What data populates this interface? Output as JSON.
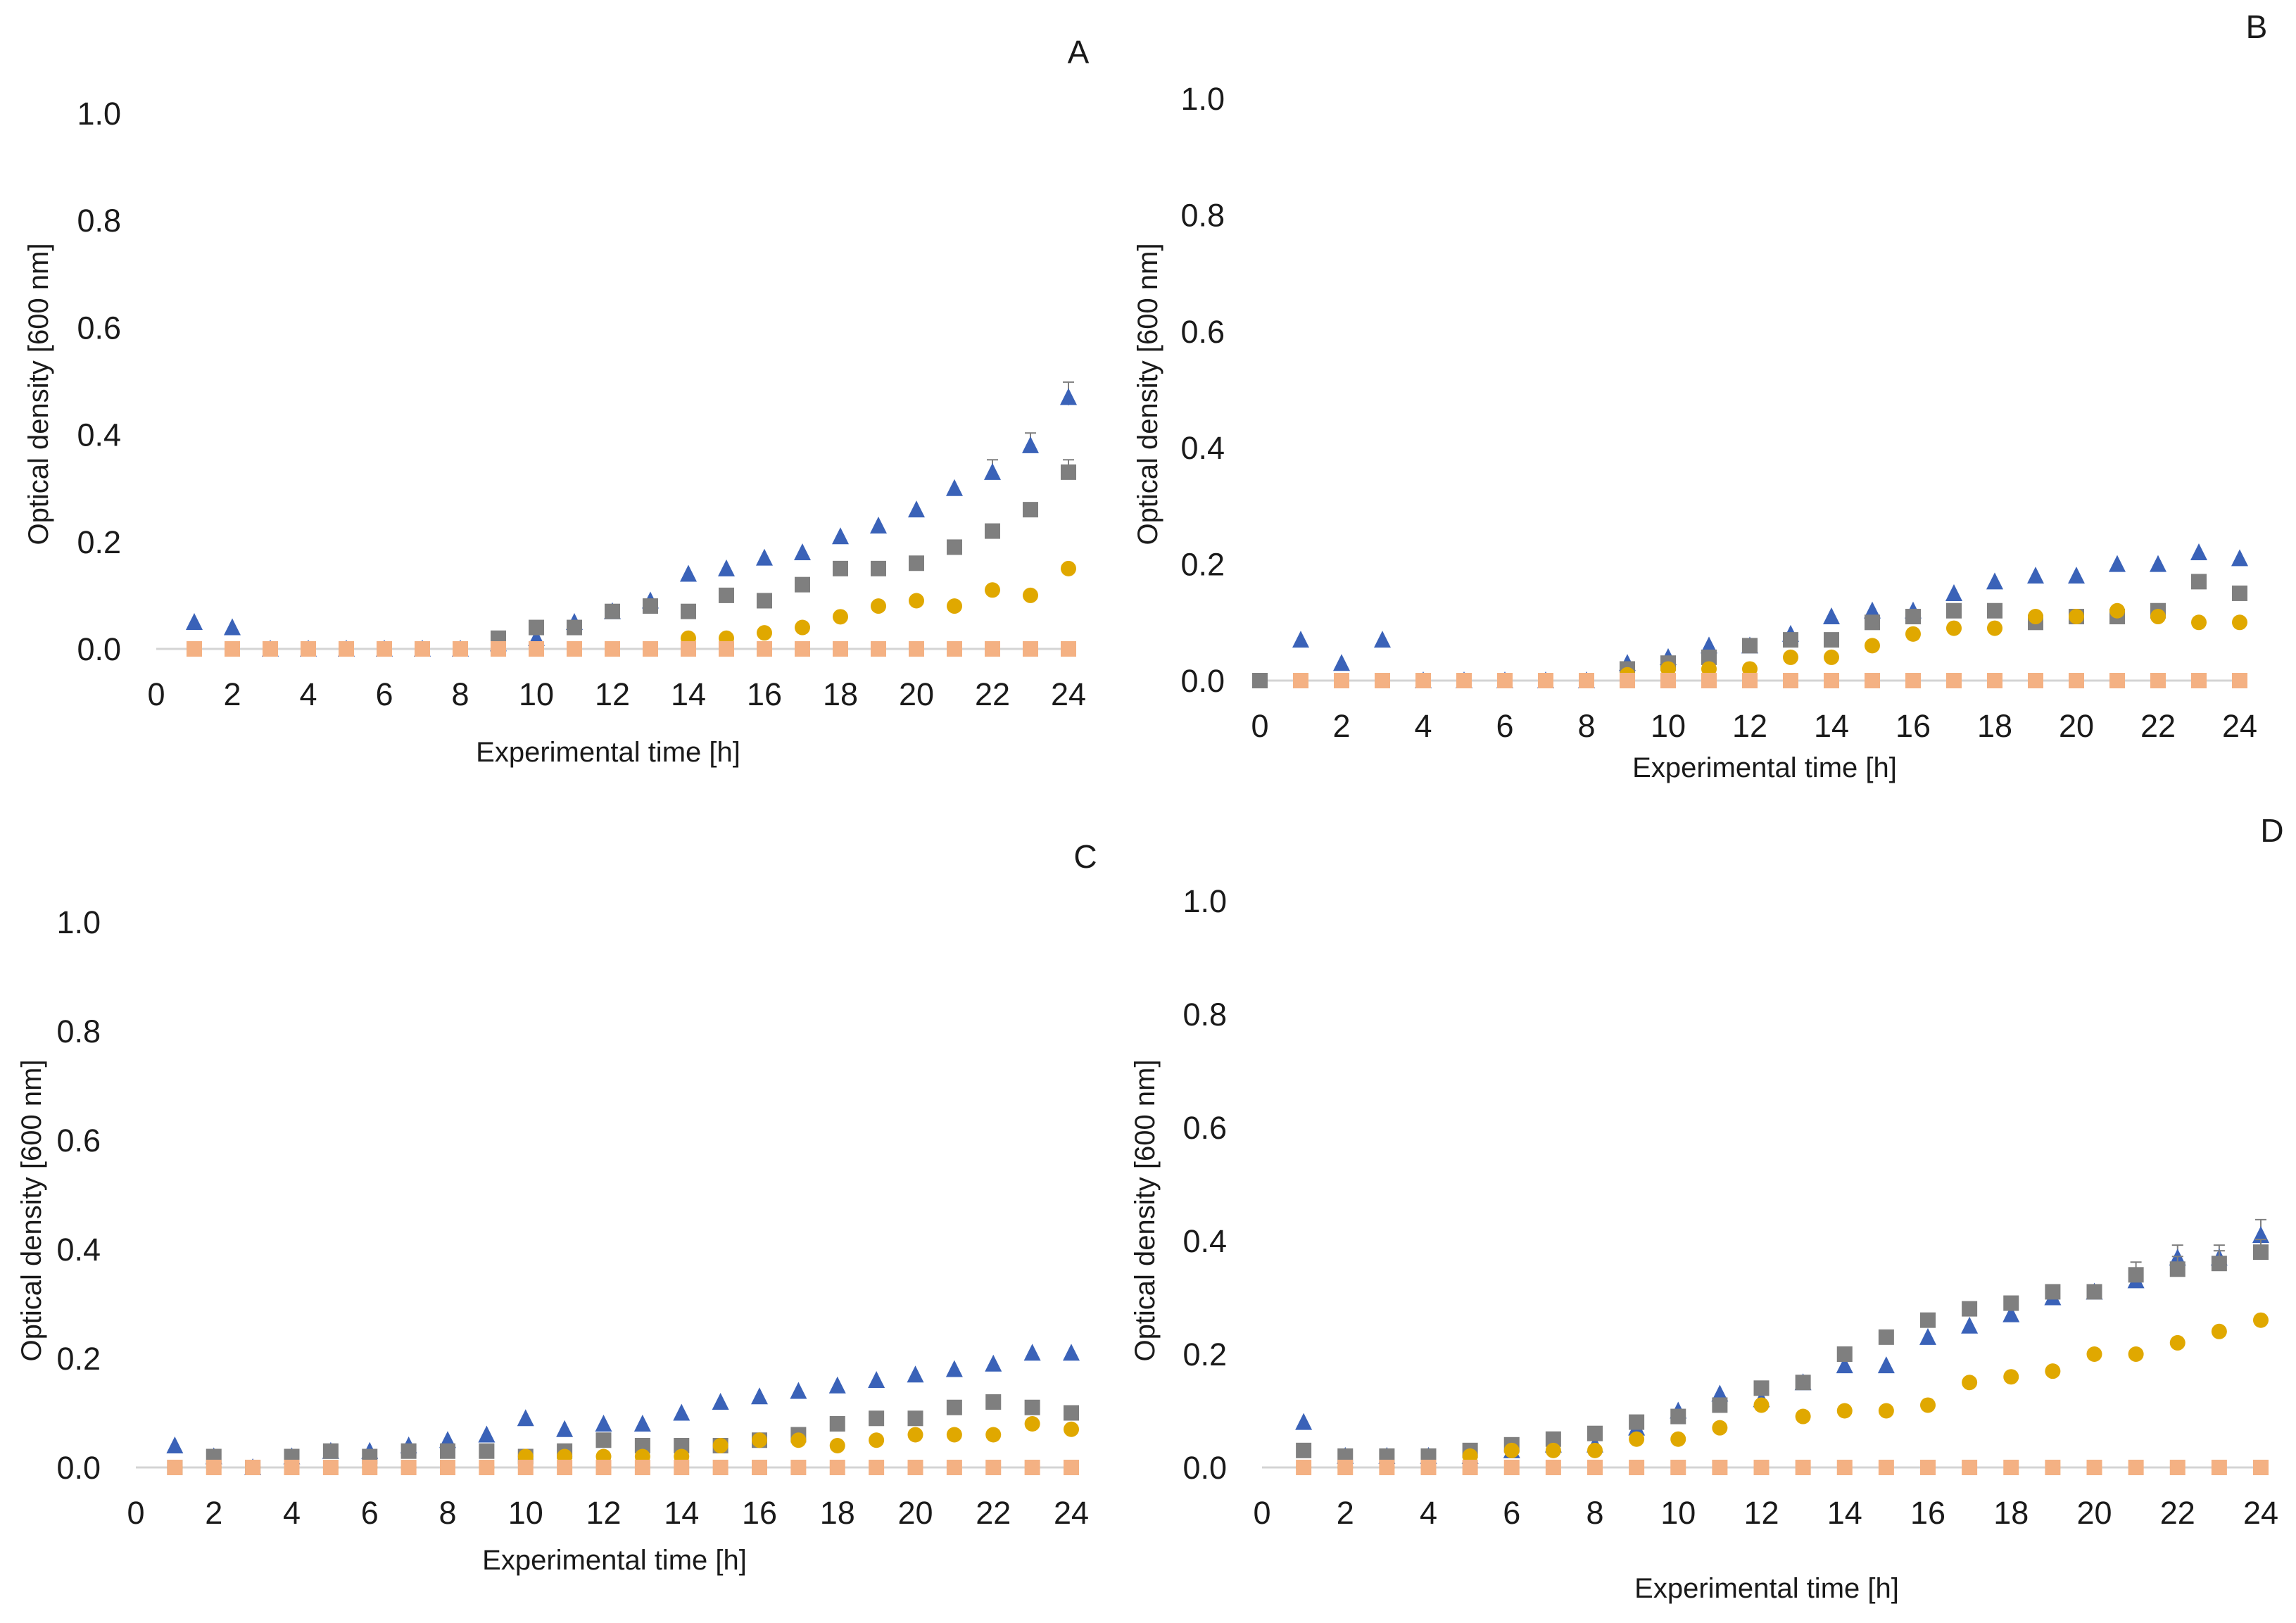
{
  "figure": {
    "background": "#ffffff"
  },
  "style": {
    "colors": {
      "blue": "#3a62b8",
      "gray": "#7f7f7f",
      "gold": "#e0a800",
      "peach": "#f4b183",
      "axis": "#d4d4d4"
    }
  },
  "chart_data": [
    {
      "type": "scatter",
      "panel": "A",
      "xlabel": "Experimental time [h]",
      "ylabel": "Optical density [600 nm]",
      "xlim": [
        0,
        24
      ],
      "ylim": [
        0,
        1.0
      ],
      "xticks": [
        "0",
        "2",
        "4",
        "6",
        "8",
        "10",
        "12",
        "14",
        "16",
        "18",
        "20",
        "22",
        "24"
      ],
      "yticks": [
        "0.0",
        "0.2",
        "0.4",
        "0.6",
        "0.8",
        "1.0"
      ],
      "series": [
        {
          "name": "series-triangle-blue",
          "marker": "triangle",
          "color": "#3a62b8",
          "x": [
            1,
            2,
            3,
            4,
            5,
            6,
            7,
            8,
            9,
            10,
            11,
            12,
            13,
            14,
            15,
            16,
            17,
            18,
            19,
            20,
            21,
            22,
            23,
            24
          ],
          "y": [
            0.05,
            0.04,
            0,
            0,
            0,
            0,
            0,
            0,
            0.01,
            0.02,
            0.05,
            0.07,
            0.09,
            0.14,
            0.15,
            0.17,
            0.18,
            0.21,
            0.23,
            0.26,
            0.3,
            0.33,
            0.38,
            0.47
          ],
          "err": [
            0,
            0,
            0,
            0,
            0,
            0,
            0,
            0,
            0,
            0,
            0,
            0,
            0,
            0,
            0,
            0,
            0,
            0,
            0,
            0,
            0,
            0.01,
            0.01,
            0.015
          ]
        },
        {
          "name": "series-square-gray",
          "marker": "square",
          "color": "#7f7f7f",
          "x": [
            1,
            2,
            3,
            4,
            5,
            6,
            7,
            8,
            9,
            10,
            11,
            12,
            13,
            14,
            15,
            16,
            17,
            18,
            19,
            20,
            21,
            22,
            23,
            24
          ],
          "y": [
            0,
            0,
            0,
            0,
            0,
            0,
            0,
            0,
            0.02,
            0.04,
            0.04,
            0.07,
            0.08,
            0.07,
            0.1,
            0.09,
            0.12,
            0.15,
            0.15,
            0.16,
            0.19,
            0.22,
            0.26,
            0.33
          ],
          "err": [
            0,
            0,
            0,
            0,
            0,
            0,
            0,
            0,
            0,
            0,
            0,
            0,
            0,
            0,
            0,
            0,
            0,
            0,
            0,
            0,
            0,
            0,
            0,
            0.01
          ]
        },
        {
          "name": "series-circle-gold",
          "marker": "circle",
          "color": "#e0a800",
          "x": [
            1,
            2,
            3,
            4,
            5,
            6,
            7,
            8,
            9,
            10,
            11,
            12,
            13,
            14,
            15,
            16,
            17,
            18,
            19,
            20,
            21,
            22,
            23,
            24
          ],
          "y": [
            0,
            0,
            0,
            0,
            0,
            0,
            0,
            0,
            0,
            0,
            0,
            0,
            0,
            0.02,
            0.02,
            0.03,
            0.04,
            0.06,
            0.08,
            0.09,
            0.08,
            0.11,
            0.1,
            0.15
          ]
        },
        {
          "name": "series-square-peach",
          "marker": "square",
          "color": "#f4b183",
          "x": [
            1,
            2,
            3,
            4,
            5,
            6,
            7,
            8,
            9,
            10,
            11,
            12,
            13,
            14,
            15,
            16,
            17,
            18,
            19,
            20,
            21,
            22,
            23,
            24
          ],
          "y": [
            0,
            0,
            0,
            0,
            0,
            0,
            0,
            0,
            0,
            0,
            0,
            0,
            0,
            0,
            0,
            0,
            0,
            0,
            0,
            0,
            0,
            0,
            0,
            0
          ]
        }
      ]
    },
    {
      "type": "scatter",
      "panel": "B",
      "xlabel": "Experimental time [h]",
      "ylabel": "Optical density [600 nm]",
      "xlim": [
        0,
        24
      ],
      "ylim": [
        0,
        1.0
      ],
      "xticks": [
        "0",
        "2",
        "4",
        "6",
        "8",
        "10",
        "12",
        "14",
        "16",
        "18",
        "20",
        "22",
        "24"
      ],
      "yticks": [
        "0.0",
        "0.2",
        "0.4",
        "0.6",
        "0.8",
        "1.0"
      ],
      "series": [
        {
          "name": "series-triangle-blue",
          "marker": "triangle",
          "color": "#3a62b8",
          "x": [
            1,
            2,
            3,
            4,
            5,
            6,
            7,
            8,
            9,
            10,
            11,
            12,
            13,
            14,
            15,
            16,
            17,
            18,
            19,
            20,
            21,
            22,
            23,
            24
          ],
          "y": [
            0.07,
            0.03,
            0.07,
            0,
            0,
            0,
            0,
            0,
            0.03,
            0.04,
            0.06,
            0.06,
            0.08,
            0.11,
            0.12,
            0.12,
            0.15,
            0.17,
            0.18,
            0.18,
            0.2,
            0.2,
            0.22,
            0.21
          ]
        },
        {
          "name": "series-square-gray",
          "marker": "square",
          "color": "#7f7f7f",
          "x": [
            0,
            1,
            2,
            3,
            4,
            5,
            6,
            7,
            8,
            9,
            10,
            11,
            12,
            13,
            14,
            15,
            16,
            17,
            18,
            19,
            20,
            21,
            22,
            23,
            24
          ],
          "y": [
            0,
            0,
            0,
            0,
            0,
            0,
            0,
            0,
            0,
            0.02,
            0.03,
            0.04,
            0.06,
            0.07,
            0.07,
            0.1,
            0.11,
            0.12,
            0.12,
            0.1,
            0.11,
            0.11,
            0.12,
            0.17,
            0.15
          ]
        },
        {
          "name": "series-circle-gold",
          "marker": "circle",
          "color": "#e0a800",
          "x": [
            1,
            2,
            3,
            4,
            5,
            6,
            7,
            8,
            9,
            10,
            11,
            12,
            13,
            14,
            15,
            16,
            17,
            18,
            19,
            20,
            21,
            22,
            23,
            24
          ],
          "y": [
            0,
            0,
            0,
            0,
            0,
            0,
            0,
            0,
            0.01,
            0.02,
            0.02,
            0.02,
            0.04,
            0.04,
            0.06,
            0.08,
            0.09,
            0.09,
            0.11,
            0.11,
            0.12,
            0.11,
            0.1,
            0.1
          ]
        },
        {
          "name": "series-square-peach",
          "marker": "square",
          "color": "#f4b183",
          "x": [
            1,
            2,
            3,
            4,
            5,
            6,
            7,
            8,
            9,
            10,
            11,
            12,
            13,
            14,
            15,
            16,
            17,
            18,
            19,
            20,
            21,
            22,
            23,
            24
          ],
          "y": [
            0,
            0,
            0,
            0,
            0,
            0,
            0,
            0,
            0,
            0,
            0,
            0,
            0,
            0,
            0,
            0,
            0,
            0,
            0,
            0,
            0,
            0,
            0,
            0
          ]
        }
      ]
    },
    {
      "type": "scatter",
      "panel": "C",
      "xlabel": "Experimental time [h]",
      "ylabel": "Optical density [600 nm]",
      "xlim": [
        0,
        24
      ],
      "ylim": [
        0,
        1.0
      ],
      "xticks": [
        "0",
        "2",
        "4",
        "6",
        "8",
        "10",
        "12",
        "14",
        "16",
        "18",
        "20",
        "22",
        "24"
      ],
      "yticks": [
        "0.0",
        "0.2",
        "0.4",
        "0.6",
        "0.8",
        "1.0"
      ],
      "series": [
        {
          "name": "series-triangle-blue",
          "marker": "triangle",
          "color": "#3a62b8",
          "x": [
            1,
            2,
            3,
            4,
            5,
            6,
            7,
            8,
            9,
            10,
            11,
            12,
            13,
            14,
            15,
            16,
            17,
            18,
            19,
            20,
            21,
            22,
            23,
            24
          ],
          "y": [
            0.04,
            0.02,
            0,
            0.02,
            0.03,
            0.03,
            0.04,
            0.05,
            0.06,
            0.09,
            0.07,
            0.08,
            0.08,
            0.1,
            0.12,
            0.13,
            0.14,
            0.15,
            0.16,
            0.17,
            0.18,
            0.19,
            0.21,
            0.21
          ]
        },
        {
          "name": "series-square-gray",
          "marker": "square",
          "color": "#7f7f7f",
          "x": [
            1,
            2,
            3,
            4,
            5,
            6,
            7,
            8,
            9,
            10,
            11,
            12,
            13,
            14,
            15,
            16,
            17,
            18,
            19,
            20,
            21,
            22,
            23,
            24
          ],
          "y": [
            0,
            0.02,
            0,
            0.02,
            0.03,
            0.02,
            0.03,
            0.03,
            0.03,
            0.02,
            0.03,
            0.05,
            0.04,
            0.04,
            0.04,
            0.05,
            0.06,
            0.08,
            0.09,
            0.09,
            0.11,
            0.12,
            0.11,
            0.1
          ]
        },
        {
          "name": "series-circle-gold",
          "marker": "circle",
          "color": "#e0a800",
          "x": [
            1,
            2,
            3,
            4,
            5,
            6,
            7,
            8,
            9,
            10,
            11,
            12,
            13,
            14,
            15,
            16,
            17,
            18,
            19,
            20,
            21,
            22,
            23,
            24
          ],
          "y": [
            0,
            0,
            0,
            0,
            0,
            0,
            0,
            0,
            0,
            0.02,
            0.02,
            0.02,
            0.02,
            0.02,
            0.04,
            0.05,
            0.05,
            0.04,
            0.05,
            0.06,
            0.06,
            0.06,
            0.08,
            0.07
          ]
        },
        {
          "name": "series-square-peach",
          "marker": "square",
          "color": "#f4b183",
          "x": [
            1,
            2,
            3,
            4,
            5,
            6,
            7,
            8,
            9,
            10,
            11,
            12,
            13,
            14,
            15,
            16,
            17,
            18,
            19,
            20,
            21,
            22,
            23,
            24
          ],
          "y": [
            0,
            0,
            0,
            0,
            0,
            0,
            0,
            0,
            0,
            0,
            0,
            0,
            0,
            0,
            0,
            0,
            0,
            0,
            0,
            0,
            0,
            0,
            0,
            0
          ]
        }
      ]
    },
    {
      "type": "scatter",
      "panel": "D",
      "xlabel": "Experimental time [h]",
      "ylabel": "Optical density [600 nm]",
      "xlim": [
        0,
        24
      ],
      "ylim": [
        0,
        1.0
      ],
      "xticks": [
        "0",
        "2",
        "4",
        "6",
        "8",
        "10",
        "12",
        "14",
        "16",
        "18",
        "20",
        "22",
        "24"
      ],
      "yticks": [
        "0.0",
        "0.2",
        "0.4",
        "0.6",
        "0.8",
        "1.0"
      ],
      "series": [
        {
          "name": "series-triangle-blue",
          "marker": "triangle",
          "color": "#3a62b8",
          "x": [
            1,
            2,
            3,
            4,
            5,
            6,
            7,
            8,
            9,
            10,
            11,
            12,
            13,
            14,
            15,
            16,
            17,
            18,
            19,
            20,
            21,
            22,
            23,
            24
          ],
          "y": [
            0.08,
            0.02,
            0.02,
            0.02,
            0.02,
            0.03,
            0.04,
            0.04,
            0.07,
            0.1,
            0.13,
            0.12,
            0.15,
            0.18,
            0.18,
            0.23,
            0.25,
            0.27,
            0.3,
            0.31,
            0.33,
            0.37,
            0.37,
            0.41
          ],
          "err": [
            0,
            0,
            0,
            0,
            0,
            0,
            0,
            0,
            0,
            0,
            0,
            0,
            0,
            0,
            0,
            0,
            0,
            0,
            0,
            0,
            0,
            0.01,
            0.01,
            0.015
          ]
        },
        {
          "name": "series-square-gray",
          "marker": "square",
          "color": "#7f7f7f",
          "x": [
            1,
            2,
            3,
            4,
            5,
            6,
            7,
            8,
            9,
            10,
            11,
            12,
            13,
            14,
            15,
            16,
            17,
            18,
            19,
            20,
            21,
            22,
            23,
            24
          ],
          "y": [
            0.03,
            0.02,
            0.02,
            0.02,
            0.03,
            0.04,
            0.05,
            0.06,
            0.08,
            0.09,
            0.11,
            0.14,
            0.15,
            0.2,
            0.23,
            0.26,
            0.28,
            0.29,
            0.31,
            0.31,
            0.34,
            0.35,
            0.36,
            0.38
          ],
          "err": [
            0,
            0,
            0,
            0,
            0,
            0,
            0,
            0,
            0,
            0,
            0,
            0,
            0,
            0,
            0,
            0,
            0,
            0,
            0,
            0,
            0.01,
            0.01,
            0.01,
            0.01
          ]
        },
        {
          "name": "series-circle-gold",
          "marker": "circle",
          "color": "#e0a800",
          "x": [
            1,
            2,
            3,
            4,
            5,
            6,
            7,
            8,
            9,
            10,
            11,
            12,
            13,
            14,
            15,
            16,
            17,
            18,
            19,
            20,
            21,
            22,
            23,
            24
          ],
          "y": [
            0,
            0,
            0,
            0,
            0.02,
            0.03,
            0.03,
            0.03,
            0.05,
            0.05,
            0.07,
            0.11,
            0.09,
            0.1,
            0.1,
            0.11,
            0.15,
            0.16,
            0.17,
            0.2,
            0.2,
            0.22,
            0.24,
            0.26
          ]
        },
        {
          "name": "series-square-peach",
          "marker": "square",
          "color": "#f4b183",
          "x": [
            1,
            2,
            3,
            4,
            5,
            6,
            7,
            8,
            9,
            10,
            11,
            12,
            13,
            14,
            15,
            16,
            17,
            18,
            19,
            20,
            21,
            22,
            23,
            24
          ],
          "y": [
            0,
            0,
            0,
            0,
            0,
            0,
            0,
            0,
            0,
            0,
            0,
            0,
            0,
            0,
            0,
            0,
            0,
            0,
            0,
            0,
            0,
            0,
            0,
            0
          ]
        }
      ]
    }
  ]
}
